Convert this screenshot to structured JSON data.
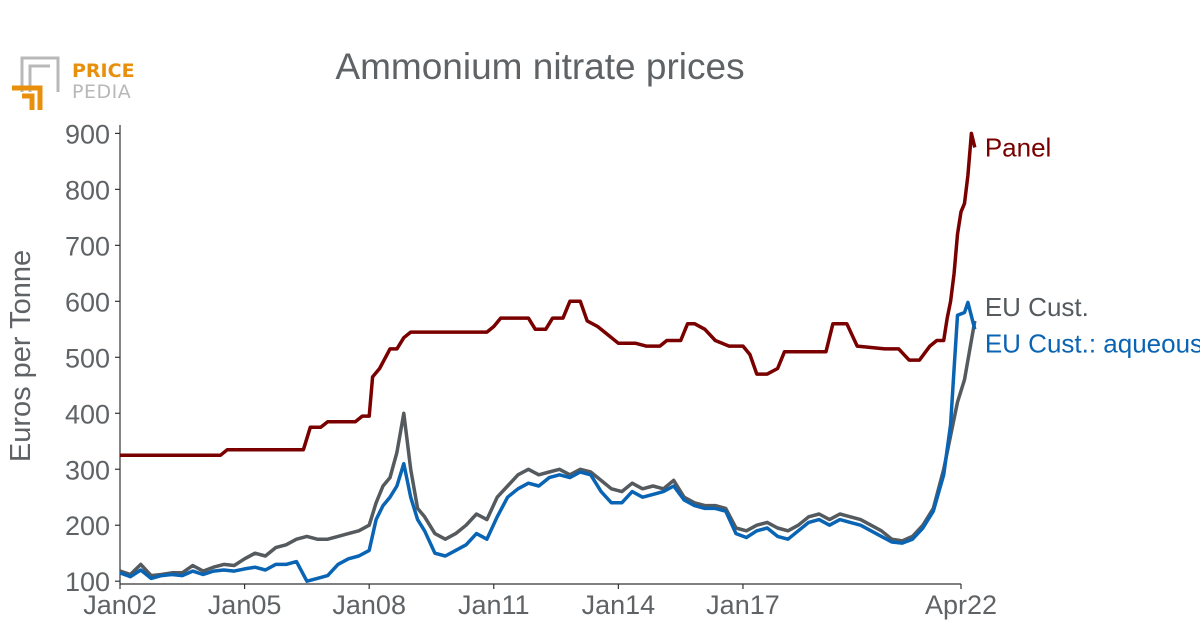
{
  "logo": {
    "line1": "PRICE",
    "line2": "PEDIA",
    "accent_color": "#e8900c",
    "gray_color": "#b8b8b8"
  },
  "chart_data": {
    "type": "line",
    "title": "Ammonium nitrate prices",
    "xlabel": "",
    "ylabel": "Euros per Tonne",
    "x_tick_labels": [
      "Jan02",
      "Jan05",
      "Jan08",
      "Jan11",
      "Jan14",
      "Jan17",
      "Apr22"
    ],
    "x_tick_dates": [
      "2002-01",
      "2005-01",
      "2008-01",
      "2011-01",
      "2014-01",
      "2017-01",
      "2022-04"
    ],
    "xlim": [
      "2002-01",
      "2022-04"
    ],
    "y_ticks": [
      100,
      200,
      300,
      400,
      500,
      600,
      700,
      800,
      900
    ],
    "ylim": [
      95,
      915
    ],
    "grid": false,
    "legend": "inline labels at right end of lines",
    "series": [
      {
        "name": "Panel",
        "color": "#7a0000",
        "points": [
          [
            "2002-01",
            325
          ],
          [
            "2004-06",
            325
          ],
          [
            "2004-08",
            335
          ],
          [
            "2006-06",
            335
          ],
          [
            "2006-08",
            375
          ],
          [
            "2006-11",
            375
          ],
          [
            "2007-01",
            385
          ],
          [
            "2007-09",
            385
          ],
          [
            "2007-11",
            395
          ],
          [
            "2008-01",
            395
          ],
          [
            "2008-02",
            465
          ],
          [
            "2008-04",
            480
          ],
          [
            "2008-07",
            515
          ],
          [
            "2008-09",
            515
          ],
          [
            "2008-11",
            535
          ],
          [
            "2009-01",
            545
          ],
          [
            "2010-11",
            545
          ],
          [
            "2011-01",
            555
          ],
          [
            "2011-03",
            570
          ],
          [
            "2011-11",
            570
          ],
          [
            "2012-01",
            550
          ],
          [
            "2012-04",
            550
          ],
          [
            "2012-06",
            570
          ],
          [
            "2012-09",
            570
          ],
          [
            "2012-11",
            600
          ],
          [
            "2013-02",
            600
          ],
          [
            "2013-04",
            565
          ],
          [
            "2013-07",
            555
          ],
          [
            "2013-10",
            540
          ],
          [
            "2014-01",
            525
          ],
          [
            "2014-06",
            525
          ],
          [
            "2014-09",
            520
          ],
          [
            "2015-01",
            520
          ],
          [
            "2015-03",
            530
          ],
          [
            "2015-07",
            530
          ],
          [
            "2015-09",
            560
          ],
          [
            "2015-11",
            560
          ],
          [
            "2016-02",
            550
          ],
          [
            "2016-05",
            530
          ],
          [
            "2016-09",
            520
          ],
          [
            "2017-01",
            520
          ],
          [
            "2017-03",
            505
          ],
          [
            "2017-05",
            470
          ],
          [
            "2017-08",
            470
          ],
          [
            "2017-11",
            480
          ],
          [
            "2018-01",
            510
          ],
          [
            "2019-01",
            510
          ],
          [
            "2019-03",
            560
          ],
          [
            "2019-07",
            560
          ],
          [
            "2019-10",
            520
          ],
          [
            "2020-06",
            515
          ],
          [
            "2020-10",
            515
          ],
          [
            "2021-01",
            495
          ],
          [
            "2021-04",
            495
          ],
          [
            "2021-07",
            520
          ],
          [
            "2021-09",
            530
          ],
          [
            "2021-11",
            530
          ],
          [
            "2021-12",
            570
          ],
          [
            "2022-01",
            600
          ],
          [
            "2022-02",
            650
          ],
          [
            "2022-03",
            720
          ],
          [
            "2022-04",
            760
          ],
          [
            "2022-05",
            775
          ],
          [
            "2022-06",
            825
          ],
          [
            "2022-07",
            900
          ],
          [
            "2022-08",
            875
          ]
        ]
      },
      {
        "name": "EU Cust.",
        "color": "#555a5e",
        "points": [
          [
            "2002-01",
            118
          ],
          [
            "2002-04",
            112
          ],
          [
            "2002-07",
            130
          ],
          [
            "2002-10",
            110
          ],
          [
            "2003-01",
            112
          ],
          [
            "2003-04",
            115
          ],
          [
            "2003-07",
            115
          ],
          [
            "2003-10",
            128
          ],
          [
            "2004-01",
            118
          ],
          [
            "2004-04",
            125
          ],
          [
            "2004-07",
            130
          ],
          [
            "2004-10",
            128
          ],
          [
            "2005-01",
            140
          ],
          [
            "2005-04",
            150
          ],
          [
            "2005-07",
            145
          ],
          [
            "2005-10",
            160
          ],
          [
            "2006-01",
            165
          ],
          [
            "2006-04",
            175
          ],
          [
            "2006-07",
            180
          ],
          [
            "2006-10",
            175
          ],
          [
            "2007-01",
            175
          ],
          [
            "2007-04",
            180
          ],
          [
            "2007-07",
            185
          ],
          [
            "2007-10",
            190
          ],
          [
            "2008-01",
            200
          ],
          [
            "2008-03",
            240
          ],
          [
            "2008-05",
            270
          ],
          [
            "2008-07",
            285
          ],
          [
            "2008-09",
            330
          ],
          [
            "2008-11",
            400
          ],
          [
            "2009-01",
            300
          ],
          [
            "2009-03",
            230
          ],
          [
            "2009-05",
            215
          ],
          [
            "2009-08",
            185
          ],
          [
            "2009-11",
            175
          ],
          [
            "2010-02",
            185
          ],
          [
            "2010-05",
            200
          ],
          [
            "2010-08",
            220
          ],
          [
            "2010-11",
            210
          ],
          [
            "2011-02",
            250
          ],
          [
            "2011-05",
            270
          ],
          [
            "2011-08",
            290
          ],
          [
            "2011-11",
            300
          ],
          [
            "2012-02",
            290
          ],
          [
            "2012-05",
            295
          ],
          [
            "2012-08",
            300
          ],
          [
            "2012-11",
            290
          ],
          [
            "2013-02",
            300
          ],
          [
            "2013-05",
            295
          ],
          [
            "2013-08",
            280
          ],
          [
            "2013-11",
            265
          ],
          [
            "2014-02",
            260
          ],
          [
            "2014-05",
            275
          ],
          [
            "2014-08",
            265
          ],
          [
            "2014-11",
            270
          ],
          [
            "2015-02",
            265
          ],
          [
            "2015-05",
            280
          ],
          [
            "2015-08",
            250
          ],
          [
            "2015-11",
            240
          ],
          [
            "2016-02",
            235
          ],
          [
            "2016-05",
            235
          ],
          [
            "2016-08",
            230
          ],
          [
            "2016-11",
            195
          ],
          [
            "2017-02",
            190
          ],
          [
            "2017-05",
            200
          ],
          [
            "2017-08",
            205
          ],
          [
            "2017-11",
            195
          ],
          [
            "2018-02",
            190
          ],
          [
            "2018-05",
            200
          ],
          [
            "2018-08",
            215
          ],
          [
            "2018-11",
            220
          ],
          [
            "2019-02",
            210
          ],
          [
            "2019-05",
            220
          ],
          [
            "2019-08",
            215
          ],
          [
            "2019-11",
            210
          ],
          [
            "2020-02",
            200
          ],
          [
            "2020-05",
            190
          ],
          [
            "2020-08",
            175
          ],
          [
            "2020-11",
            172
          ],
          [
            "2021-02",
            180
          ],
          [
            "2021-05",
            200
          ],
          [
            "2021-08",
            230
          ],
          [
            "2021-11",
            300
          ],
          [
            "2022-01",
            360
          ],
          [
            "2022-03",
            420
          ],
          [
            "2022-05",
            460
          ],
          [
            "2022-08",
            565
          ]
        ]
      },
      {
        "name": "EU Cust.: aqueous",
        "color": "#0a64b4",
        "points": [
          [
            "2002-01",
            115
          ],
          [
            "2002-04",
            108
          ],
          [
            "2002-07",
            120
          ],
          [
            "2002-10",
            105
          ],
          [
            "2003-01",
            110
          ],
          [
            "2003-04",
            112
          ],
          [
            "2003-07",
            110
          ],
          [
            "2003-10",
            118
          ],
          [
            "2004-01",
            112
          ],
          [
            "2004-04",
            118
          ],
          [
            "2004-07",
            120
          ],
          [
            "2004-10",
            118
          ],
          [
            "2005-01",
            122
          ],
          [
            "2005-04",
            125
          ],
          [
            "2005-07",
            120
          ],
          [
            "2005-10",
            130
          ],
          [
            "2006-01",
            130
          ],
          [
            "2006-04",
            135
          ],
          [
            "2006-07",
            100
          ],
          [
            "2006-10",
            105
          ],
          [
            "2007-01",
            110
          ],
          [
            "2007-04",
            130
          ],
          [
            "2007-07",
            140
          ],
          [
            "2007-10",
            145
          ],
          [
            "2008-01",
            155
          ],
          [
            "2008-03",
            210
          ],
          [
            "2008-05",
            235
          ],
          [
            "2008-07",
            250
          ],
          [
            "2008-09",
            270
          ],
          [
            "2008-11",
            310
          ],
          [
            "2009-01",
            250
          ],
          [
            "2009-03",
            210
          ],
          [
            "2009-05",
            190
          ],
          [
            "2009-08",
            150
          ],
          [
            "2009-11",
            145
          ],
          [
            "2010-02",
            155
          ],
          [
            "2010-05",
            165
          ],
          [
            "2010-08",
            185
          ],
          [
            "2010-11",
            175
          ],
          [
            "2011-02",
            215
          ],
          [
            "2011-05",
            250
          ],
          [
            "2011-08",
            265
          ],
          [
            "2011-11",
            275
          ],
          [
            "2012-02",
            270
          ],
          [
            "2012-05",
            285
          ],
          [
            "2012-08",
            290
          ],
          [
            "2012-11",
            285
          ],
          [
            "2013-02",
            295
          ],
          [
            "2013-05",
            290
          ],
          [
            "2013-08",
            260
          ],
          [
            "2013-11",
            240
          ],
          [
            "2014-02",
            240
          ],
          [
            "2014-05",
            260
          ],
          [
            "2014-08",
            250
          ],
          [
            "2014-11",
            255
          ],
          [
            "2015-02",
            260
          ],
          [
            "2015-05",
            270
          ],
          [
            "2015-08",
            245
          ],
          [
            "2015-11",
            235
          ],
          [
            "2016-02",
            230
          ],
          [
            "2016-05",
            230
          ],
          [
            "2016-08",
            225
          ],
          [
            "2016-11",
            185
          ],
          [
            "2017-02",
            178
          ],
          [
            "2017-05",
            190
          ],
          [
            "2017-08",
            195
          ],
          [
            "2017-11",
            180
          ],
          [
            "2018-02",
            175
          ],
          [
            "2018-05",
            190
          ],
          [
            "2018-08",
            205
          ],
          [
            "2018-11",
            210
          ],
          [
            "2019-02",
            200
          ],
          [
            "2019-05",
            210
          ],
          [
            "2019-08",
            205
          ],
          [
            "2019-11",
            200
          ],
          [
            "2020-02",
            190
          ],
          [
            "2020-05",
            180
          ],
          [
            "2020-08",
            170
          ],
          [
            "2020-11",
            168
          ],
          [
            "2021-02",
            175
          ],
          [
            "2021-05",
            195
          ],
          [
            "2021-08",
            225
          ],
          [
            "2021-11",
            290
          ],
          [
            "2022-01",
            380
          ],
          [
            "2022-02",
            480
          ],
          [
            "2022-03",
            575
          ],
          [
            "2022-05",
            580
          ],
          [
            "2022-06",
            598
          ],
          [
            "2022-08",
            550
          ]
        ]
      }
    ]
  }
}
